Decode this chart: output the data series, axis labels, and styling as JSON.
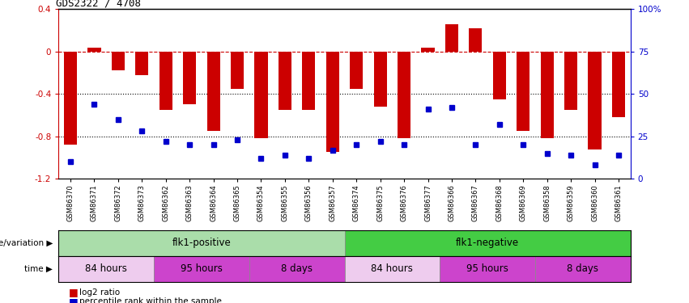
{
  "title": "GDS2322 / 4708",
  "samples": [
    "GSM86370",
    "GSM86371",
    "GSM86372",
    "GSM86373",
    "GSM86362",
    "GSM86363",
    "GSM86364",
    "GSM86365",
    "GSM86354",
    "GSM86355",
    "GSM86356",
    "GSM86357",
    "GSM86374",
    "GSM86375",
    "GSM86376",
    "GSM86377",
    "GSM86366",
    "GSM86367",
    "GSM86368",
    "GSM86369",
    "GSM86358",
    "GSM86359",
    "GSM86360",
    "GSM86361"
  ],
  "log2_ratio": [
    -0.88,
    0.04,
    -0.18,
    -0.22,
    -0.55,
    -0.5,
    -0.75,
    -0.35,
    -0.82,
    -0.55,
    -0.55,
    -0.95,
    -0.35,
    -0.52,
    -0.82,
    0.04,
    0.26,
    0.22,
    -0.45,
    -0.75,
    -0.82,
    -0.55,
    -0.92,
    -0.62
  ],
  "percentile": [
    10,
    44,
    35,
    28,
    22,
    20,
    20,
    23,
    12,
    14,
    12,
    17,
    20,
    22,
    20,
    41,
    42,
    20,
    32,
    20,
    15,
    14,
    8,
    14
  ],
  "bar_color": "#cc0000",
  "dot_color": "#0000cc",
  "dashed_line_color": "#cc0000",
  "dotted_line_color": "#000000",
  "ylim_left": [
    -1.2,
    0.4
  ],
  "ylim_right": [
    0,
    100
  ],
  "yticks_left": [
    0.4,
    0.0,
    -0.4,
    -0.8,
    -1.2
  ],
  "ytick_labels_left": [
    "0.4",
    "0",
    "-0.4",
    "-0.8",
    "-1.2"
  ],
  "yticks_right": [
    100,
    75,
    50,
    25,
    0
  ],
  "ytick_labels_right": [
    "100%",
    "75",
    "50",
    "25",
    "0"
  ],
  "bar_width": 0.55,
  "genotype_groups": [
    {
      "label": "flk1-positive",
      "start": 0,
      "end": 11,
      "color": "#aaddaa"
    },
    {
      "label": "flk1-negative",
      "start": 12,
      "end": 23,
      "color": "#44cc44"
    }
  ],
  "time_groups": [
    {
      "label": "84 hours",
      "start": 0,
      "end": 3,
      "color": "#eeccee"
    },
    {
      "label": "95 hours",
      "start": 4,
      "end": 7,
      "color": "#cc44cc"
    },
    {
      "label": "8 days",
      "start": 8,
      "end": 11,
      "color": "#cc44cc"
    },
    {
      "label": "84 hours",
      "start": 12,
      "end": 15,
      "color": "#eeccee"
    },
    {
      "label": "95 hours",
      "start": 16,
      "end": 19,
      "color": "#cc44cc"
    },
    {
      "label": "8 days",
      "start": 20,
      "end": 23,
      "color": "#cc44cc"
    }
  ],
  "legend_items": [
    {
      "color": "#cc0000",
      "label": "log2 ratio"
    },
    {
      "color": "#0000cc",
      "label": "percentile rank within the sample"
    }
  ],
  "genotype_label": "genotype/variation",
  "time_label": "time",
  "background_color": "#ffffff",
  "plot_bg_color": "#ffffff"
}
